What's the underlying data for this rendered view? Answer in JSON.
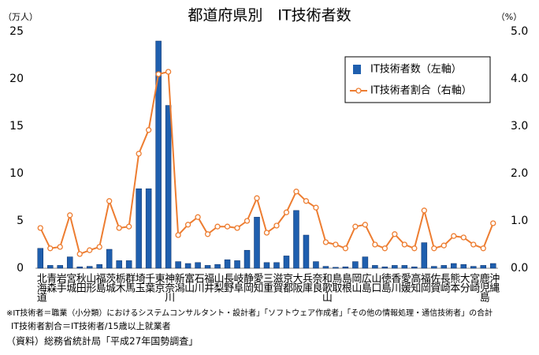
{
  "chart_data": {
    "type": "bar_line",
    "title": "都道府県別　IT技術者数",
    "y_unit": "（万人）",
    "y2_unit": "（%）",
    "categories": [
      "北海道",
      "青森",
      "岩手",
      "宮城",
      "秋田",
      "山形",
      "福島",
      "茨城",
      "栃木",
      "群馬",
      "埼玉",
      "千葉",
      "東京",
      "神奈川",
      "新潟",
      "富山",
      "石川",
      "福井",
      "山梨",
      "長野",
      "岐阜",
      "静岡",
      "愛知",
      "三重",
      "滋賀",
      "京都",
      "大阪",
      "兵庫",
      "奈良",
      "和歌山",
      "鳥取",
      "島根",
      "岡山",
      "広島",
      "山口",
      "徳島",
      "香川",
      "愛媛",
      "高知",
      "福岡",
      "佐賀",
      "長崎",
      "熊本",
      "大分",
      "宮崎",
      "鹿児島",
      "沖縄"
    ],
    "series": [
      {
        "name": "IT技術者数（左軸）",
        "type": "bar",
        "color": "#1f5fae",
        "values": [
          2.1,
          0.3,
          0.3,
          1.2,
          0.15,
          0.2,
          0.4,
          2.0,
          0.8,
          0.8,
          8.4,
          8.4,
          24.0,
          17.2,
          0.7,
          0.5,
          0.6,
          0.3,
          0.4,
          0.9,
          0.8,
          1.9,
          5.4,
          0.6,
          0.6,
          1.3,
          6.1,
          3.5,
          0.7,
          0.2,
          0.1,
          0.15,
          0.7,
          1.2,
          0.3,
          0.15,
          0.3,
          0.3,
          0.15,
          2.7,
          0.2,
          0.3,
          0.5,
          0.4,
          0.2,
          0.3,
          0.5
        ]
      },
      {
        "name": "IT技術者割合（右軸）",
        "type": "line",
        "axis": "y2",
        "color": "#ed7d31",
        "values": [
          0.85,
          0.42,
          0.45,
          1.12,
          0.3,
          0.38,
          0.45,
          1.42,
          0.85,
          0.88,
          2.42,
          2.92,
          4.1,
          4.15,
          0.7,
          0.92,
          1.08,
          0.72,
          0.88,
          0.88,
          0.85,
          1.0,
          1.48,
          0.75,
          0.9,
          1.18,
          1.62,
          1.42,
          1.28,
          0.55,
          0.5,
          0.42,
          0.88,
          0.92,
          0.5,
          0.42,
          0.72,
          0.5,
          0.42,
          1.22,
          0.42,
          0.48,
          0.68,
          0.65,
          0.5,
          0.42,
          0.95
        ]
      }
    ],
    "ylim": [
      0,
      25
    ],
    "yticks": [
      0,
      5,
      10,
      15,
      20,
      25
    ],
    "y2lim": [
      0,
      5
    ],
    "y2ticks": [
      {
        "value": 0,
        "label": "0.0"
      },
      {
        "value": 1,
        "label": "1.0"
      },
      {
        "value": 2,
        "label": "2.0"
      },
      {
        "value": 3,
        "label": "3.0"
      },
      {
        "value": 4,
        "label": "4.0"
      },
      {
        "value": 5,
        "label": "5.0"
      }
    ],
    "grid": false,
    "legend": "upper right",
    "notes": [
      "※IT技術者＝職業（小分類）におけるシステムコンサルタント・設計者」「ソフトウェア作成者」「その他の情報処理・通信技術者」の合計",
      "IT技術者割合＝IT技術者/15歳以上就業者",
      "（資料）総務省統計局「平成27年国勢調査」"
    ]
  }
}
